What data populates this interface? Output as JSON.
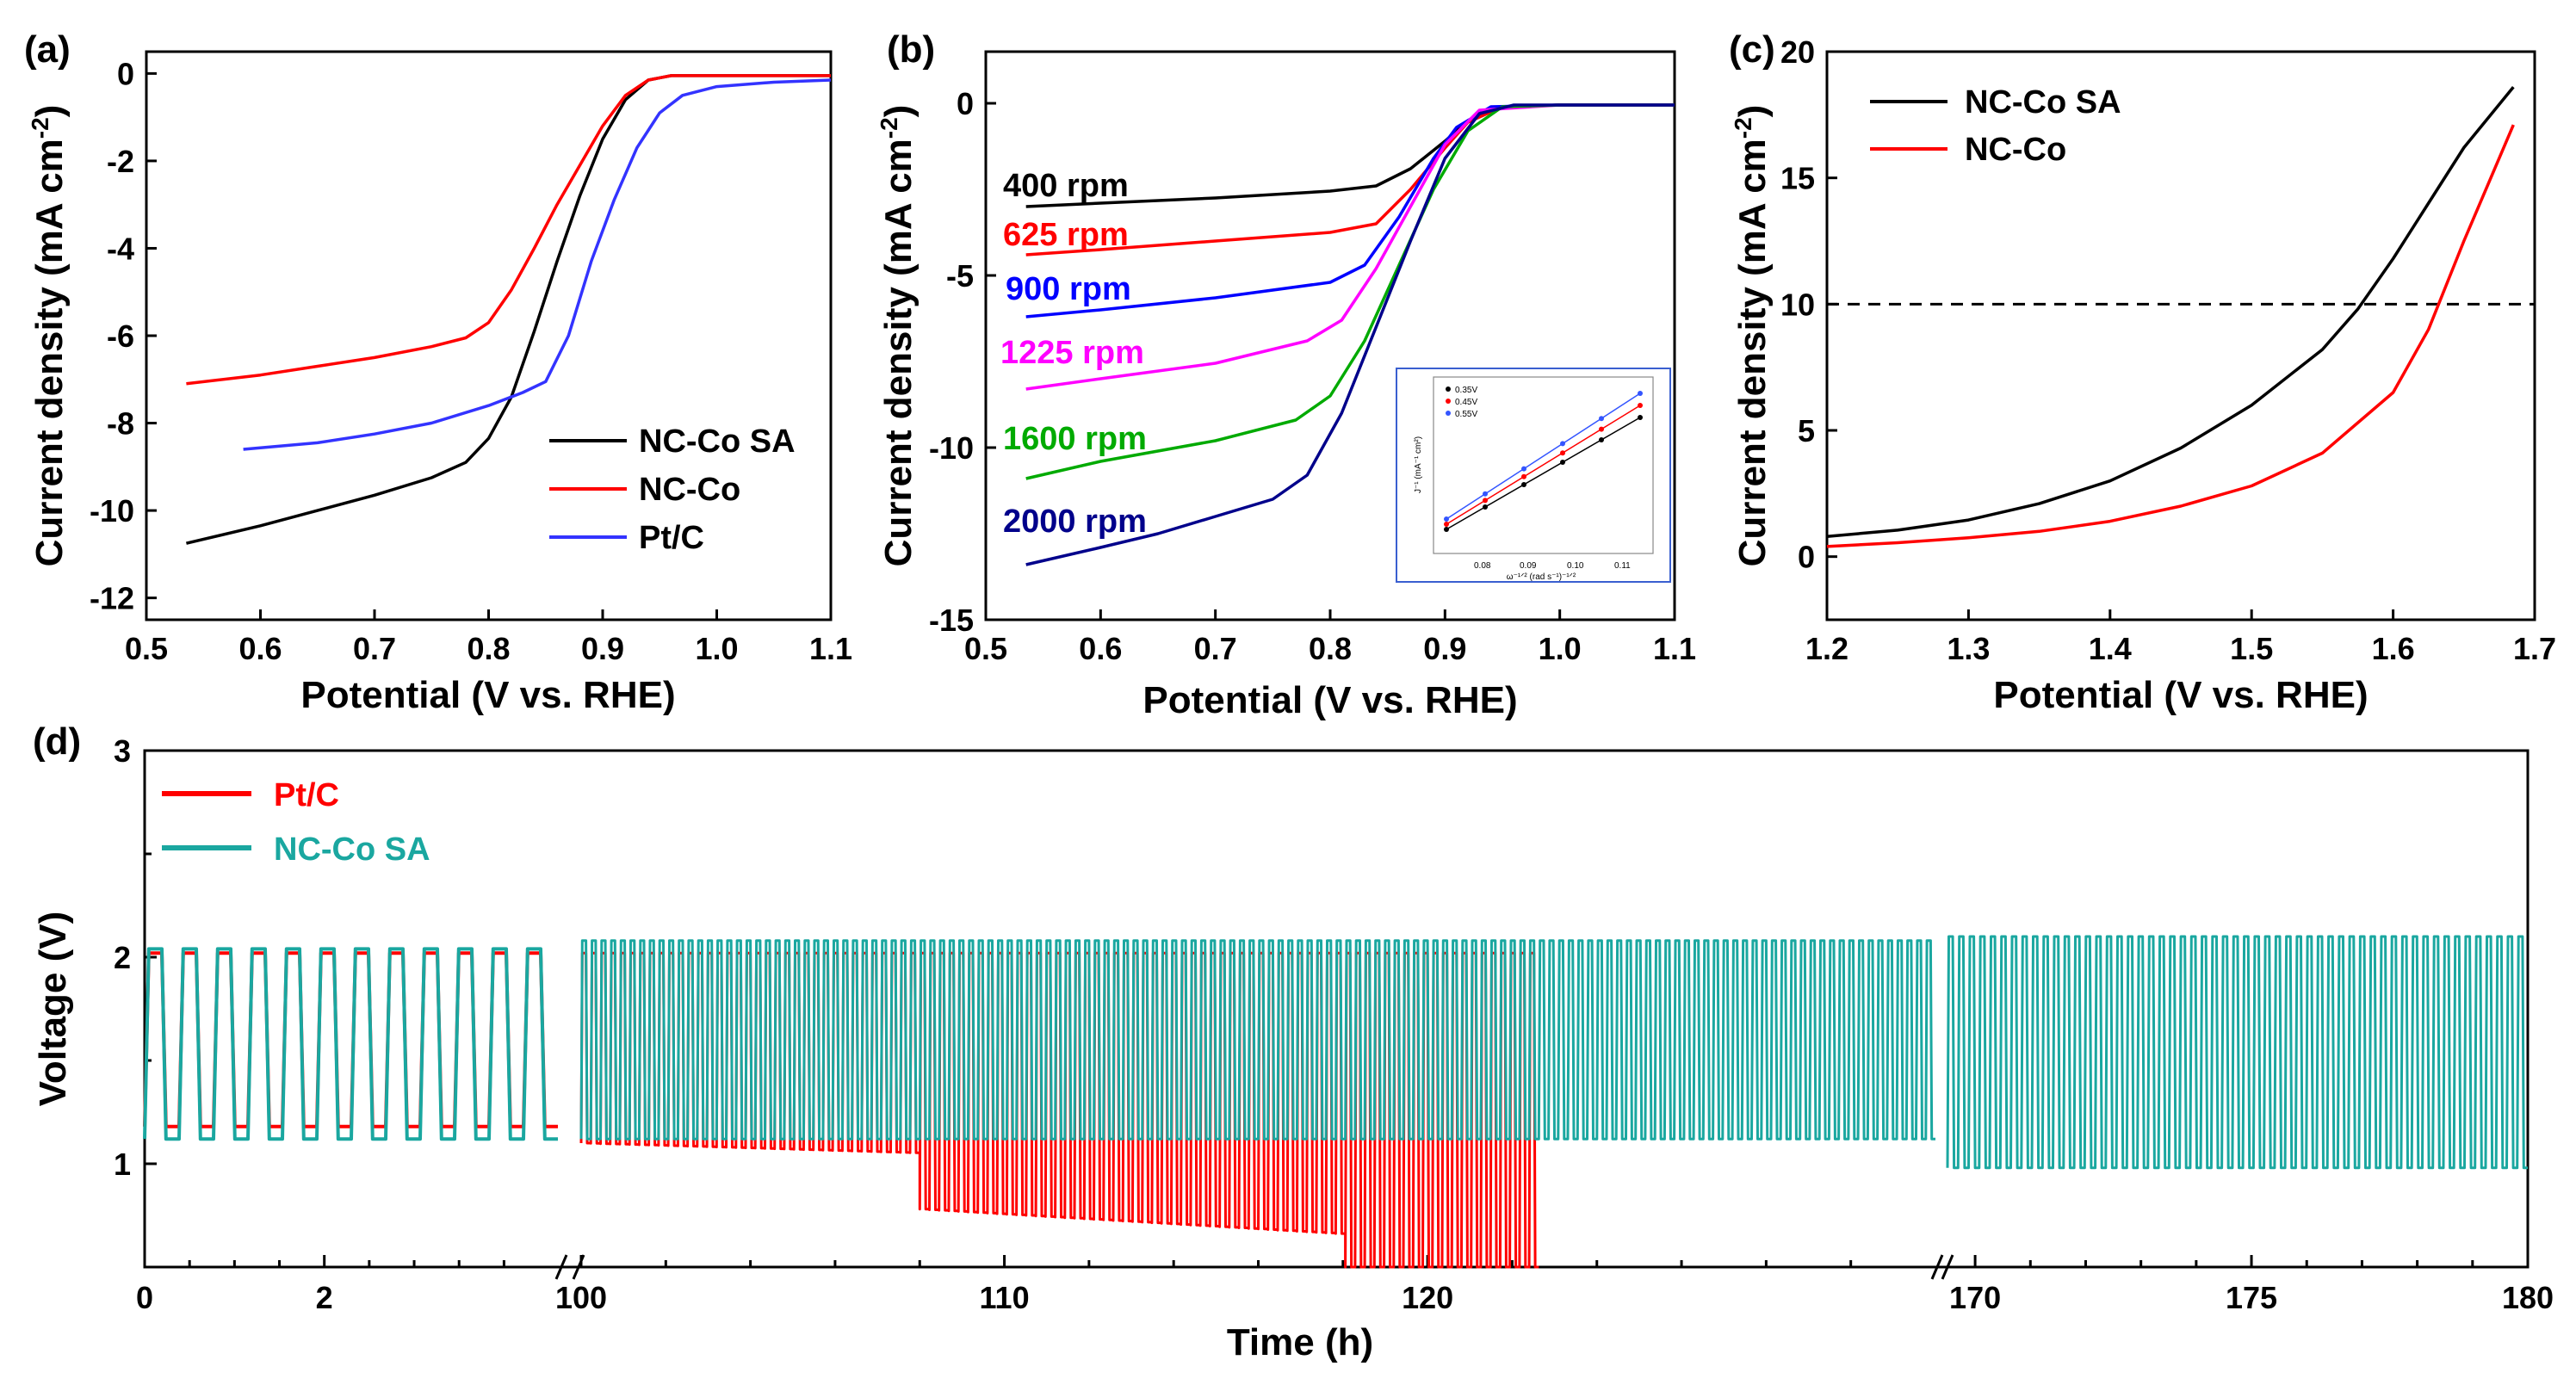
{
  "chart_data": [
    {
      "id": "a",
      "type": "line",
      "panel_label": "(a)",
      "xlabel": "Potential (V vs. RHE)",
      "ylabel": "Current density (mA cm",
      "ylabel_sup": "-2",
      "ylabel_end": ")",
      "xlim": [
        0.5,
        1.1
      ],
      "ylim": [
        -12.5,
        0.5
      ],
      "xticks": [
        "0.5",
        "0.6",
        "0.7",
        "0.8",
        "0.9",
        "1.0",
        "1.1"
      ],
      "yticks": [
        "0",
        "-2",
        "-4",
        "-6",
        "-8",
        "-10",
        "-12"
      ],
      "legend_position": "bottom-right",
      "series": [
        {
          "name": "NC-Co SA",
          "color": "#000000",
          "x": [
            0.535,
            0.6,
            0.65,
            0.7,
            0.75,
            0.78,
            0.8,
            0.82,
            0.84,
            0.86,
            0.88,
            0.9,
            0.92,
            0.94,
            0.96,
            1.0,
            1.05,
            1.1
          ],
          "y": [
            -10.75,
            -10.35,
            -10.0,
            -9.65,
            -9.25,
            -8.9,
            -8.35,
            -7.4,
            -5.9,
            -4.3,
            -2.8,
            -1.5,
            -0.6,
            -0.15,
            -0.05,
            -0.05,
            -0.05,
            -0.05
          ]
        },
        {
          "name": "NC-Co",
          "color": "#ff0000",
          "x": [
            0.535,
            0.6,
            0.65,
            0.7,
            0.75,
            0.78,
            0.8,
            0.82,
            0.84,
            0.86,
            0.88,
            0.9,
            0.92,
            0.94,
            0.96,
            1.0,
            1.05,
            1.1
          ],
          "y": [
            -7.1,
            -6.9,
            -6.7,
            -6.5,
            -6.25,
            -6.05,
            -5.7,
            -4.95,
            -4.0,
            -3.0,
            -2.1,
            -1.2,
            -0.5,
            -0.15,
            -0.05,
            -0.05,
            -0.05,
            -0.05
          ]
        },
        {
          "name": "Pt/C",
          "color": "#3333ff",
          "x": [
            0.585,
            0.65,
            0.7,
            0.75,
            0.8,
            0.83,
            0.85,
            0.87,
            0.89,
            0.91,
            0.93,
            0.95,
            0.97,
            1.0,
            1.05,
            1.1
          ],
          "y": [
            -8.6,
            -8.45,
            -8.25,
            -8.0,
            -7.6,
            -7.3,
            -7.05,
            -6.0,
            -4.3,
            -2.9,
            -1.7,
            -0.9,
            -0.5,
            -0.3,
            -0.2,
            -0.15
          ]
        }
      ]
    },
    {
      "id": "b",
      "type": "line",
      "panel_label": "(b)",
      "xlabel": "Potential (V vs. RHE)",
      "ylabel": "Current density (mA cm",
      "ylabel_sup": "-2",
      "ylabel_end": ")",
      "xlim": [
        0.5,
        1.1
      ],
      "ylim": [
        -15,
        1.5
      ],
      "xticks": [
        "0.5",
        "0.6",
        "0.7",
        "0.8",
        "0.9",
        "1.0",
        "1.1"
      ],
      "yticks": [
        "0",
        "-5",
        "-10",
        "-15"
      ],
      "series": [
        {
          "name": "400 rpm",
          "color": "#000000",
          "x": [
            0.535,
            0.6,
            0.7,
            0.8,
            0.84,
            0.87,
            0.9,
            0.92,
            0.95,
            1.0,
            1.1
          ],
          "y": [
            -3.0,
            -2.9,
            -2.75,
            -2.55,
            -2.4,
            -1.9,
            -1.1,
            -0.5,
            -0.1,
            -0.05,
            -0.05
          ]
        },
        {
          "name": "625 rpm",
          "color": "#ff0000",
          "x": [
            0.535,
            0.6,
            0.7,
            0.8,
            0.84,
            0.87,
            0.9,
            0.92,
            0.95,
            1.0,
            1.1
          ],
          "y": [
            -4.4,
            -4.25,
            -4.0,
            -3.75,
            -3.5,
            -2.5,
            -1.3,
            -0.55,
            -0.1,
            -0.05,
            -0.05
          ]
        },
        {
          "name": "900 rpm",
          "color": "#0000ff",
          "x": [
            0.535,
            0.6,
            0.7,
            0.8,
            0.83,
            0.86,
            0.89,
            0.91,
            0.94,
            1.0,
            1.1
          ],
          "y": [
            -6.2,
            -6.0,
            -5.65,
            -5.2,
            -4.7,
            -3.3,
            -1.6,
            -0.7,
            -0.1,
            -0.05,
            -0.05
          ]
        },
        {
          "name": "1225 rpm",
          "color": "#ff00ff",
          "x": [
            0.535,
            0.6,
            0.7,
            0.78,
            0.81,
            0.84,
            0.87,
            0.9,
            0.93,
            1.0,
            1.1
          ],
          "y": [
            -8.3,
            -8.0,
            -7.55,
            -6.9,
            -6.3,
            -4.8,
            -3.0,
            -1.2,
            -0.2,
            -0.05,
            -0.05
          ]
        },
        {
          "name": "1600 rpm",
          "color": "#00aa00",
          "x": [
            0.535,
            0.6,
            0.7,
            0.77,
            0.8,
            0.83,
            0.86,
            0.89,
            0.92,
            0.95,
            1.0,
            1.1
          ],
          "y": [
            -10.9,
            -10.4,
            -9.8,
            -9.2,
            -8.5,
            -6.9,
            -4.7,
            -2.5,
            -0.8,
            -0.1,
            -0.05,
            -0.05
          ]
        },
        {
          "name": "2000 rpm",
          "color": "#00008b",
          "x": [
            0.535,
            0.6,
            0.65,
            0.7,
            0.75,
            0.78,
            0.81,
            0.84,
            0.87,
            0.9,
            0.93,
            0.96,
            1.0,
            1.1
          ],
          "y": [
            -13.4,
            -12.9,
            -12.5,
            -12.0,
            -11.5,
            -10.8,
            -9.0,
            -6.5,
            -4.0,
            -1.6,
            -0.3,
            -0.05,
            -0.05,
            -0.05
          ]
        }
      ],
      "inset": {
        "type": "scatter",
        "ylabel": "J⁻¹ (mA⁻¹ cm²)",
        "xlabel": "ω⁻¹ᐟ² (rad s⁻¹)⁻¹ᐟ²",
        "xticks": [
          "0.08",
          "0.09",
          "0.10",
          "0.11"
        ],
        "legend": [
          "0.35V",
          "0.45V",
          "0.55V"
        ],
        "colors": [
          "#000000",
          "#ff0000",
          "#3355ff"
        ]
      }
    },
    {
      "id": "c",
      "type": "line",
      "panel_label": "(c)",
      "xlabel": "Potential (V vs. RHE)",
      "ylabel": "Current density (mA cm",
      "ylabel_sup": "-2",
      "ylabel_end": ")",
      "xlim": [
        1.2,
        1.7
      ],
      "ylim": [
        -2.5,
        20
      ],
      "xticks": [
        "1.2",
        "1.3",
        "1.4",
        "1.5",
        "1.6",
        "1.7"
      ],
      "yticks": [
        "0",
        "5",
        "10",
        "15",
        "20"
      ],
      "reference_line": {
        "y": 10,
        "style": "dashed"
      },
      "legend_position": "top-left",
      "series": [
        {
          "name": "NC-Co SA",
          "color": "#000000",
          "x": [
            1.2,
            1.25,
            1.3,
            1.35,
            1.4,
            1.45,
            1.5,
            1.55,
            1.575,
            1.6,
            1.625,
            1.65,
            1.685
          ],
          "y": [
            0.8,
            1.05,
            1.45,
            2.1,
            3.0,
            4.3,
            6.0,
            8.2,
            9.8,
            11.8,
            14.0,
            16.2,
            18.6
          ]
        },
        {
          "name": "NC-Co",
          "color": "#ff0000",
          "x": [
            1.2,
            1.25,
            1.3,
            1.35,
            1.4,
            1.45,
            1.5,
            1.55,
            1.6,
            1.625,
            1.65,
            1.685
          ],
          "y": [
            0.4,
            0.55,
            0.75,
            1.0,
            1.4,
            2.0,
            2.8,
            4.1,
            6.5,
            9.0,
            12.5,
            17.1
          ]
        }
      ]
    },
    {
      "id": "d",
      "type": "line",
      "panel_label": "(d)",
      "xlabel": "Time (h)",
      "ylabel": "Voltage (V)",
      "ylim": [
        0.5,
        3.0
      ],
      "yticks": [
        "1",
        "2",
        "3"
      ],
      "xticks": [
        "0",
        "2",
        "100",
        "110",
        "120",
        "170",
        "175",
        "180"
      ],
      "broken_axis_segments": [
        {
          "range": [
            0,
            4.6
          ]
        },
        {
          "range": [
            100,
            132
          ]
        },
        {
          "range": [
            169.5,
            180
          ]
        }
      ],
      "series": [
        {
          "name": "Pt/C",
          "color": "#ff0000",
          "charge_voltage": 2.02,
          "discharge_voltage_start": 1.18,
          "discharge_voltage_drop_to": 0.5,
          "ends_at_h": 122.5
        },
        {
          "name": "NC-Co SA",
          "color": "#1aa7a0",
          "charge_voltage": 2.08,
          "discharge_voltage": 1.12,
          "discharge_voltage_late": 0.98
        }
      ]
    }
  ]
}
